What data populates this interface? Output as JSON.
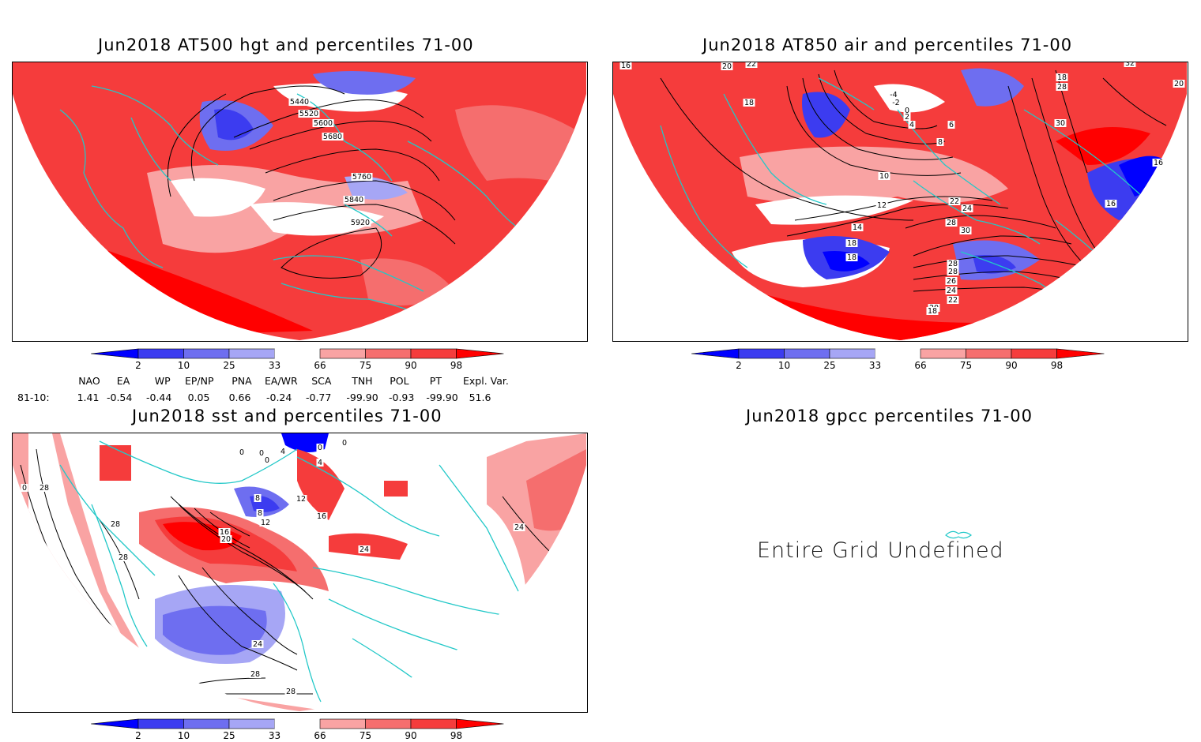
{
  "colors": {
    "white": "#ffffff",
    "pale_red": "#f9a3a3",
    "light_red": "#f56e6e",
    "red": "#f53c3c",
    "strong_red": "#ff0000",
    "pale_blue": "#a6a6f5",
    "light_blue": "#6e6ef0",
    "blue": "#3c3cf0",
    "strong_blue": "#0000ff",
    "coast": "#22c8c8",
    "contour": "#000000"
  },
  "colorbar": {
    "labels": [
      "2",
      "10",
      "25",
      "33",
      "66",
      "75",
      "90",
      "98"
    ]
  },
  "panels": {
    "hgt": {
      "title": "Jun2018 AT500 hgt and percentiles 71-00",
      "contour_labels": [
        "5440",
        "5520",
        "5600",
        "5680",
        "5760",
        "5840",
        "5920"
      ]
    },
    "air": {
      "title": "Jun2018 AT850 air and percentiles 71-00",
      "contour_labels": [
        "16",
        "20",
        "22",
        "18",
        "-4",
        "-2",
        "0",
        "2",
        "4",
        "6",
        "8",
        "10",
        "12",
        "14",
        "18",
        "18",
        "22",
        "24",
        "28",
        "30",
        "28",
        "28",
        "26",
        "24",
        "22",
        "20",
        "18",
        "28",
        "30",
        "32",
        "20",
        "16",
        "16",
        "18"
      ]
    },
    "sst": {
      "title": "Jun2018 sst and percentiles 71-00",
      "contour_labels": [
        "0",
        "0",
        "0",
        "0",
        "4",
        "0",
        "0",
        "4",
        "8",
        "8",
        "12",
        "12",
        "16",
        "16",
        "20",
        "24",
        "28",
        "28",
        "28",
        "24",
        "28",
        "28",
        "24"
      ]
    },
    "gpcc": {
      "title": "Jun2018 gpcc percentiles 71-00",
      "message": "Entire Grid Undefined"
    }
  },
  "indices": {
    "headers": [
      "NAO",
      "EA",
      "WP",
      "EP/NP",
      "PNA",
      "EA/WR",
      "SCA",
      "TNH",
      "POL",
      "PT",
      "Expl. Var."
    ],
    "row_label": "81-10:",
    "values": [
      "1.41",
      "-0.54",
      "-0.44",
      "0.05",
      "0.66",
      "-0.24",
      "-0.77",
      "-99.90",
      "-0.93",
      "-99.90",
      "51.6"
    ]
  }
}
